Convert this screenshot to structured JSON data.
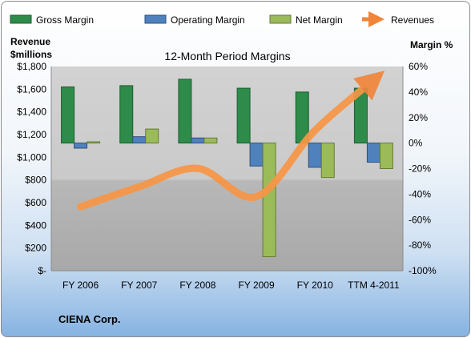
{
  "chart_data": {
    "type": "bar",
    "title": "12-Month Period Margins",
    "categories": [
      "FY 2006",
      "FY 2007",
      "FY 2008",
      "FY 2009",
      "FY 2010",
      "TTM 4-2011"
    ],
    "left_axis": {
      "title_line1": "Revenue",
      "title_line2": "$millions",
      "ylim": [
        0,
        1800
      ],
      "ticks": [
        0,
        200,
        400,
        600,
        800,
        1000,
        1200,
        1400,
        1600,
        1800
      ],
      "tick_labels": [
        "$-",
        "$200",
        "$400",
        "$600",
        "$800",
        "$1,000",
        "$1,200",
        "$1,400",
        "$1,600",
        "$1,800"
      ]
    },
    "right_axis": {
      "title": "Margin %",
      "ylim": [
        -100,
        60
      ],
      "ticks": [
        -100,
        -80,
        -60,
        -40,
        -20,
        0,
        20,
        40,
        60
      ],
      "tick_labels": [
        "-100%",
        "-80%",
        "-60%",
        "-40%",
        "-20%",
        "0%",
        "20%",
        "40%",
        "60%"
      ]
    },
    "series": [
      {
        "name": "Gross Margin",
        "type": "bar",
        "axis": "right",
        "color": "#2e8b4a",
        "values": [
          44,
          45,
          50,
          43,
          40,
          43
        ]
      },
      {
        "name": "Operating Margin",
        "type": "bar",
        "axis": "right",
        "color": "#4f81bd",
        "values": [
          -4,
          5,
          4,
          -18,
          -19,
          -15
        ]
      },
      {
        "name": "Net Margin",
        "type": "bar",
        "axis": "right",
        "color": "#9bbb59",
        "values": [
          1,
          11,
          4,
          -89,
          -27,
          -20
        ]
      },
      {
        "name": "Revenues",
        "type": "line",
        "axis": "left",
        "color": "#f79646",
        "values": [
          564,
          740,
          902,
          653,
          1237,
          1680
        ]
      }
    ],
    "legend_position": "top",
    "grid": false
  },
  "footer": {
    "company": "CIENA Corp."
  }
}
